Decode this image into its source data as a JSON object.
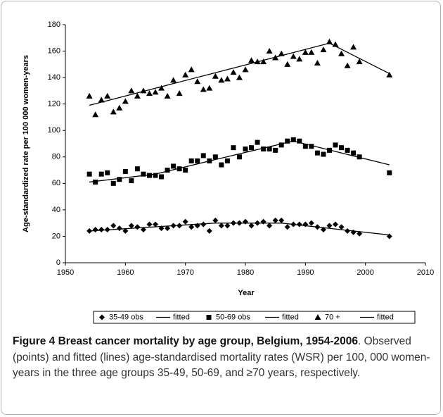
{
  "chart_data": {
    "type": "scatter",
    "xlabel": "Year",
    "ylabel": "Age-standardized rate per 100 000 women-years",
    "xlim": [
      1950,
      2010
    ],
    "xticks": [
      1950,
      1960,
      1970,
      1980,
      1990,
      2000,
      2010
    ],
    "ylim": [
      0,
      180
    ],
    "yticks": [
      0,
      20,
      40,
      60,
      80,
      100,
      120,
      140,
      160,
      180
    ],
    "legend": "bottom",
    "series": [
      {
        "name": "35-49 obs",
        "mode": "markers",
        "marker": "diamond",
        "color": "#000000",
        "x": [
          1954,
          1955,
          1956,
          1957,
          1958,
          1959,
          1960,
          1961,
          1962,
          1963,
          1964,
          1965,
          1966,
          1967,
          1968,
          1969,
          1970,
          1971,
          1972,
          1973,
          1974,
          1975,
          1976,
          1977,
          1978,
          1979,
          1980,
          1981,
          1982,
          1983,
          1984,
          1985,
          1986,
          1987,
          1988,
          1989,
          1990,
          1991,
          1992,
          1993,
          1994,
          1995,
          1996,
          1997,
          1998,
          1999,
          2004
        ],
        "values": [
          24,
          25,
          25,
          25,
          28,
          26,
          24,
          28,
          27,
          25,
          29,
          29,
          26,
          26,
          28,
          28,
          31,
          27,
          28,
          29,
          24,
          32,
          28,
          28,
          30,
          30,
          31,
          28,
          30,
          31,
          28,
          32,
          32,
          27,
          29,
          29,
          29,
          30,
          27,
          25,
          28,
          29,
          27,
          24,
          23,
          22,
          20
        ]
      },
      {
        "name": "fitted",
        "mode": "line",
        "color": "#000000",
        "x": [
          1954,
          1975,
          1986,
          2004
        ],
        "values": [
          24,
          30,
          30,
          21
        ]
      },
      {
        "name": "50-69 obs",
        "mode": "markers",
        "marker": "square",
        "color": "#000000",
        "x": [
          1954,
          1955,
          1956,
          1957,
          1958,
          1959,
          1960,
          1961,
          1962,
          1963,
          1964,
          1965,
          1966,
          1967,
          1968,
          1969,
          1970,
          1971,
          1972,
          1973,
          1974,
          1975,
          1976,
          1977,
          1978,
          1979,
          1980,
          1981,
          1982,
          1983,
          1984,
          1985,
          1986,
          1987,
          1988,
          1989,
          1990,
          1991,
          1992,
          1993,
          1994,
          1995,
          1996,
          1997,
          1998,
          1999,
          2004
        ],
        "values": [
          67,
          61,
          67,
          68,
          60,
          63,
          69,
          62,
          71,
          67,
          66,
          66,
          65,
          70,
          73,
          71,
          70,
          77,
          77,
          81,
          77,
          80,
          74,
          77,
          87,
          80,
          86,
          87,
          91,
          86,
          86,
          85,
          89,
          92,
          93,
          92,
          88,
          88,
          83,
          82,
          85,
          89,
          87,
          85,
          83,
          80,
          68
        ]
      },
      {
        "name": "fitted",
        "mode": "line",
        "color": "#000000",
        "x": [
          1954,
          1965,
          1975,
          1988,
          2004
        ],
        "values": [
          61,
          67,
          78,
          92,
          74
        ]
      },
      {
        "name": "70 +",
        "mode": "markers",
        "marker": "triangle",
        "color": "#000000",
        "x": [
          1954,
          1955,
          1956,
          1957,
          1958,
          1959,
          1960,
          1961,
          1962,
          1963,
          1964,
          1965,
          1966,
          1967,
          1968,
          1969,
          1970,
          1971,
          1972,
          1973,
          1974,
          1975,
          1976,
          1977,
          1978,
          1979,
          1980,
          1981,
          1982,
          1983,
          1984,
          1985,
          1986,
          1987,
          1988,
          1989,
          1990,
          1991,
          1992,
          1993,
          1994,
          1995,
          1996,
          1997,
          1998,
          1999,
          2004
        ],
        "values": [
          126,
          112,
          123,
          126,
          114,
          117,
          122,
          130,
          126,
          130,
          128,
          129,
          132,
          126,
          138,
          128,
          142,
          146,
          137,
          131,
          132,
          141,
          138,
          139,
          144,
          140,
          146,
          153,
          152,
          152,
          160,
          155,
          158,
          150,
          156,
          154,
          159,
          159,
          151,
          161,
          167,
          165,
          158,
          149,
          163,
          152,
          142
        ]
      },
      {
        "name": "fitted",
        "mode": "line",
        "color": "#000000",
        "x": [
          1954,
          1994,
          2004
        ],
        "values": [
          119,
          166,
          143
        ]
      }
    ]
  },
  "caption": {
    "title": "Figure 4 Breast cancer mortality by age group, Belgium, 1954-2006",
    "text": ". Observed (points) and fitted (lines) age-standardised mortality rates (WSR) per 100, 000 women-years in the three age groups 35-49, 50-69, and ≥70 years, respectively."
  }
}
